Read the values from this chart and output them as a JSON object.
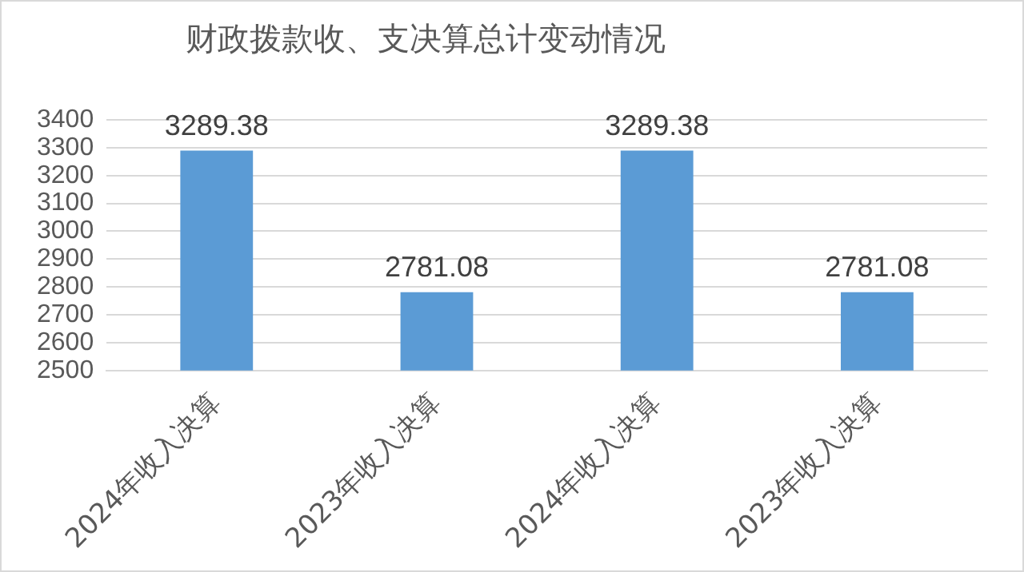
{
  "chart_data": {
    "type": "bar",
    "title": "财政拨款收、支决算总计变动情况",
    "categories": [
      "2024年收入决算",
      "2023年收入决算",
      "2024年收入决算",
      "2023年收入决算"
    ],
    "values": [
      3289.38,
      2781.08,
      3289.38,
      2781.08
    ],
    "color": "#5b9bd5",
    "ylim": [
      2500,
      3400
    ],
    "yticks": [
      2500,
      2600,
      2700,
      2800,
      2900,
      3000,
      3100,
      3200,
      3300,
      3400
    ],
    "grid": "y",
    "data_labels": true
  }
}
